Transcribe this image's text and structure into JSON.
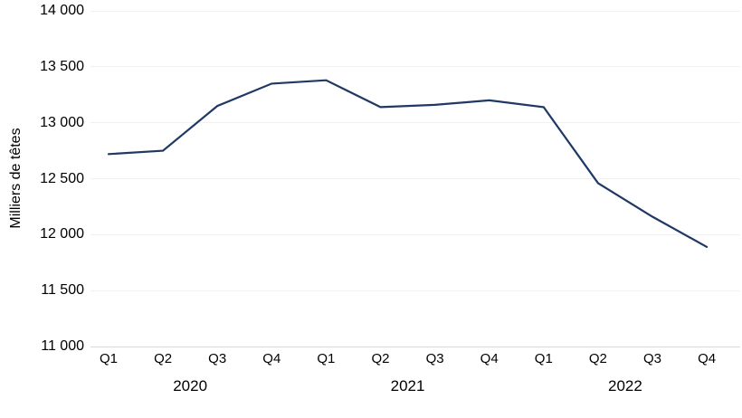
{
  "chart_data": {
    "type": "line",
    "title": "",
    "xlabel": "",
    "ylabel": "Milliers de têtes",
    "categories": [
      "Q1",
      "Q2",
      "Q3",
      "Q4",
      "Q1",
      "Q2",
      "Q3",
      "Q4",
      "Q1",
      "Q2",
      "Q3",
      "Q4"
    ],
    "year_labels": [
      "2020",
      "2021",
      "2022"
    ],
    "values": [
      12720,
      12750,
      13150,
      13350,
      13380,
      13140,
      13160,
      13200,
      13140,
      12460,
      12160,
      11890
    ],
    "ylim": [
      11000,
      14000
    ],
    "y_ticks": [
      11000,
      11500,
      12000,
      12500,
      13000,
      13500,
      14000
    ],
    "y_tick_labels": [
      "11 000",
      "11 500",
      "12 000",
      "12 500",
      "13 000",
      "13 500",
      "14 000"
    ],
    "legend": "none",
    "grid": "horizontal",
    "colors": {
      "line": "#1f3864",
      "gridline": "#f1f1f1",
      "axis_line": "#d9d9d9",
      "text": "#000000",
      "background": "#ffffff"
    }
  }
}
